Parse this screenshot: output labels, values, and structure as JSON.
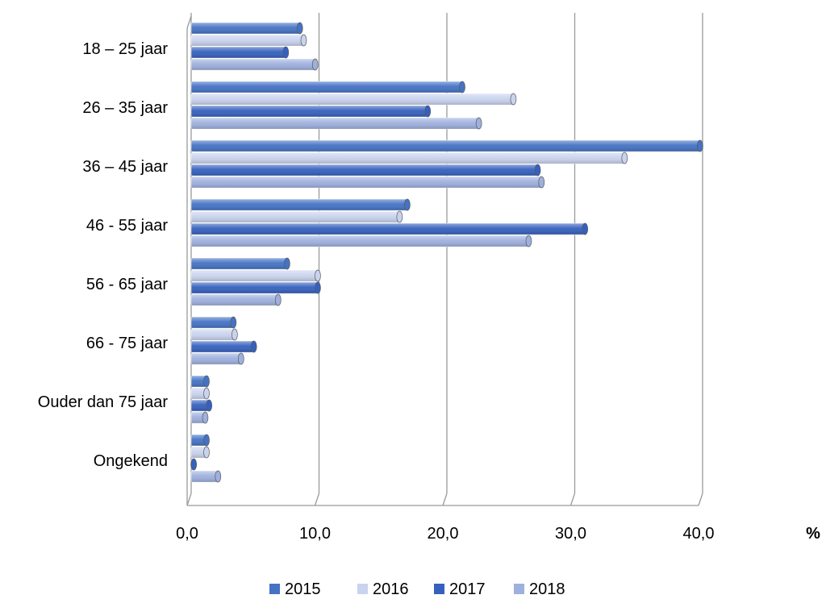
{
  "chart_data": {
    "type": "bar",
    "orientation": "horizontal",
    "style": "3d",
    "categories": [
      "18 – 25 jaar",
      "26 – 35 jaar",
      "36 – 45 jaar",
      "46 - 55 jaar",
      "56 - 65 jaar",
      "66 - 75 jaar",
      "Ouder dan 75 jaar",
      "Ongekend"
    ],
    "series": [
      {
        "name": "2015",
        "color": "#4472C4",
        "values": [
          8.5,
          21.2,
          39.8,
          16.9,
          7.5,
          3.3,
          1.2,
          1.2
        ]
      },
      {
        "name": "2016",
        "color": "#C9D3EE",
        "values": [
          8.8,
          25.2,
          33.9,
          16.3,
          9.9,
          3.4,
          1.2,
          1.2
        ]
      },
      {
        "name": "2017",
        "color": "#3560BE",
        "values": [
          7.4,
          18.5,
          27.1,
          30.8,
          9.9,
          4.9,
          1.4,
          0.2
        ]
      },
      {
        "name": "2018",
        "color": "#9EB0DE",
        "values": [
          9.7,
          22.5,
          27.4,
          26.4,
          6.8,
          3.9,
          1.1,
          2.1
        ]
      }
    ],
    "xlim": [
      0,
      40
    ],
    "xticks": [
      "0,0",
      "10,0",
      "20,0",
      "30,0",
      "40,0"
    ],
    "xtick_values": [
      0,
      10,
      20,
      30,
      40
    ],
    "xlabel": "%",
    "grid": true,
    "legend_position": "bottom"
  }
}
